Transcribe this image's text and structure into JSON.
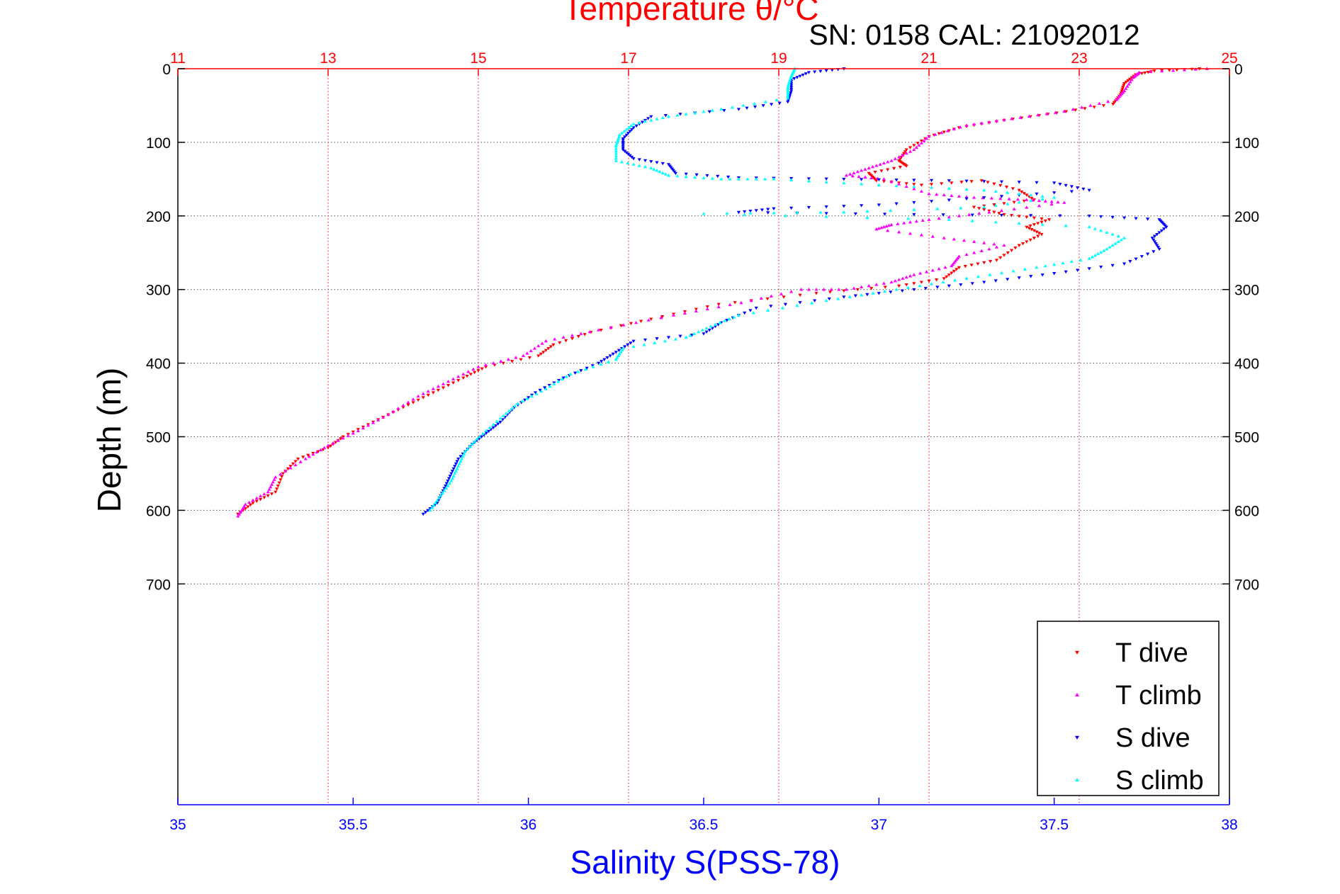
{
  "chart_data": {
    "type": "scatter",
    "title": "Temperature θ/°C",
    "subtitle": "SN: 0158  CAL: 21092012",
    "ylabel": "Depth (m)",
    "xlabel": "Salinity S(PSS-78)",
    "y_axis": {
      "range": [
        0,
        1000
      ],
      "inverted": true,
      "ticks": [
        0,
        100,
        200,
        300,
        400,
        500,
        600,
        700
      ],
      "tick_labels": [
        "0",
        "100",
        "200",
        "300",
        "400",
        "500",
        "600",
        "700"
      ]
    },
    "top_axis": {
      "quantity": "temperature",
      "range": [
        11,
        25
      ],
      "ticks": [
        11,
        13,
        15,
        17,
        19,
        21,
        23,
        25
      ],
      "tick_labels": [
        "11",
        "13",
        "15",
        "17",
        "19",
        "21",
        "23",
        "25"
      ],
      "color": "#ff0000"
    },
    "bottom_axis": {
      "quantity": "salinity",
      "range": [
        35,
        38
      ],
      "ticks": [
        35,
        35.5,
        36,
        36.5,
        37,
        37.5,
        38
      ],
      "tick_labels": [
        "35",
        "35.5",
        "36",
        "36.5",
        "37",
        "37.5",
        "38"
      ],
      "color": "#0000ff"
    },
    "grid": true,
    "legend_position": "bottom-right",
    "series": [
      {
        "name": "T dive",
        "axis": "temperature",
        "color": "#ff0000",
        "marker": "triangle-down",
        "points": [
          [
            24.6,
            0
          ],
          [
            24.0,
            3
          ],
          [
            23.75,
            8
          ],
          [
            23.6,
            20
          ],
          [
            23.55,
            35
          ],
          [
            23.45,
            48
          ],
          [
            22.7,
            60
          ],
          [
            22.0,
            70
          ],
          [
            21.4,
            80
          ],
          [
            21.0,
            92
          ],
          [
            20.7,
            110
          ],
          [
            20.6,
            125
          ],
          [
            20.7,
            132
          ],
          [
            20.2,
            142
          ],
          [
            20.3,
            152
          ],
          [
            20.9,
            158
          ],
          [
            21.7,
            152
          ],
          [
            22.2,
            165
          ],
          [
            22.4,
            178
          ],
          [
            21.6,
            188
          ],
          [
            22.0,
            198
          ],
          [
            22.6,
            205
          ],
          [
            22.3,
            215
          ],
          [
            22.5,
            225
          ],
          [
            22.2,
            240
          ],
          [
            21.9,
            260
          ],
          [
            21.4,
            270
          ],
          [
            21.2,
            285
          ],
          [
            20.6,
            295
          ],
          [
            19.5,
            305
          ],
          [
            18.2,
            320
          ],
          [
            17.3,
            340
          ],
          [
            16.5,
            358
          ],
          [
            16.0,
            375
          ],
          [
            15.8,
            390
          ],
          [
            15.1,
            405
          ],
          [
            14.8,
            420
          ],
          [
            14.4,
            440
          ],
          [
            14.0,
            460
          ],
          [
            13.6,
            480
          ],
          [
            13.2,
            500
          ],
          [
            13.0,
            515
          ],
          [
            12.6,
            530
          ],
          [
            12.4,
            550
          ],
          [
            12.3,
            575
          ],
          [
            12.0,
            590
          ],
          [
            11.8,
            605
          ]
        ]
      },
      {
        "name": "T climb",
        "axis": "temperature",
        "color": "#ff00ff",
        "marker": "triangle-up",
        "points": [
          [
            24.7,
            0
          ],
          [
            23.8,
            5
          ],
          [
            23.72,
            12
          ],
          [
            23.6,
            30
          ],
          [
            23.5,
            42
          ],
          [
            22.8,
            58
          ],
          [
            22.1,
            68
          ],
          [
            21.5,
            77
          ],
          [
            21.0,
            92
          ],
          [
            20.8,
            110
          ],
          [
            20.5,
            125
          ],
          [
            20.2,
            135
          ],
          [
            19.9,
            145
          ],
          [
            20.4,
            150
          ],
          [
            21.0,
            170
          ],
          [
            21.6,
            175
          ],
          [
            22.3,
            178
          ],
          [
            22.8,
            182
          ],
          [
            21.8,
            195
          ],
          [
            21.0,
            205
          ],
          [
            20.5,
            212
          ],
          [
            20.3,
            218
          ],
          [
            21.2,
            230
          ],
          [
            22.0,
            240
          ],
          [
            21.4,
            255
          ],
          [
            21.3,
            268
          ],
          [
            20.8,
            280
          ],
          [
            20.5,
            290
          ],
          [
            19.9,
            300
          ],
          [
            19.3,
            300
          ],
          [
            18.5,
            318
          ],
          [
            17.6,
            335
          ],
          [
            16.6,
            355
          ],
          [
            15.9,
            370
          ],
          [
            15.6,
            390
          ],
          [
            15.0,
            405
          ],
          [
            14.6,
            425
          ],
          [
            14.2,
            445
          ],
          [
            13.8,
            470
          ],
          [
            13.4,
            492
          ],
          [
            13.0,
            512
          ],
          [
            12.7,
            530
          ],
          [
            12.3,
            555
          ],
          [
            12.2,
            575
          ],
          [
            11.9,
            592
          ],
          [
            11.8,
            608
          ]
        ]
      },
      {
        "name": "S dive",
        "axis": "salinity",
        "color": "#0000ff",
        "marker": "triangle-down",
        "points": [
          [
            36.9,
            0
          ],
          [
            36.8,
            5
          ],
          [
            36.75,
            15
          ],
          [
            36.75,
            30
          ],
          [
            36.74,
            45
          ],
          [
            36.6,
            55
          ],
          [
            36.35,
            65
          ],
          [
            36.3,
            80
          ],
          [
            36.27,
            95
          ],
          [
            36.27,
            110
          ],
          [
            36.3,
            122
          ],
          [
            36.4,
            130
          ],
          [
            36.42,
            142
          ],
          [
            36.6,
            148
          ],
          [
            36.9,
            150
          ],
          [
            37.2,
            152
          ],
          [
            37.5,
            155
          ],
          [
            37.6,
            165
          ],
          [
            37.3,
            175
          ],
          [
            37.0,
            185
          ],
          [
            36.7,
            190
          ],
          [
            36.6,
            195
          ],
          [
            37.1,
            198
          ],
          [
            37.6,
            200
          ],
          [
            37.8,
            205
          ],
          [
            37.82,
            215
          ],
          [
            37.78,
            230
          ],
          [
            37.8,
            245
          ],
          [
            37.7,
            265
          ],
          [
            37.5,
            278
          ],
          [
            37.3,
            290
          ],
          [
            37.1,
            300
          ],
          [
            36.9,
            310
          ],
          [
            36.65,
            325
          ],
          [
            36.55,
            345
          ],
          [
            36.5,
            360
          ],
          [
            36.3,
            370
          ],
          [
            36.25,
            385
          ],
          [
            36.2,
            400
          ],
          [
            36.1,
            420
          ],
          [
            36.02,
            440
          ],
          [
            35.96,
            460
          ],
          [
            35.92,
            480
          ],
          [
            35.88,
            495
          ],
          [
            35.84,
            510
          ],
          [
            35.8,
            530
          ],
          [
            35.78,
            550
          ],
          [
            35.76,
            570
          ],
          [
            35.74,
            590
          ],
          [
            35.7,
            605
          ]
        ]
      },
      {
        "name": "S climb",
        "axis": "salinity",
        "color": "#00ffff",
        "marker": "triangle-up",
        "points": [
          [
            36.76,
            0
          ],
          [
            36.75,
            10
          ],
          [
            36.74,
            25
          ],
          [
            36.74,
            40
          ],
          [
            36.55,
            55
          ],
          [
            36.4,
            65
          ],
          [
            36.3,
            75
          ],
          [
            36.26,
            90
          ],
          [
            36.25,
            105
          ],
          [
            36.25,
            125
          ],
          [
            36.35,
            135
          ],
          [
            36.4,
            145
          ],
          [
            36.55,
            150
          ],
          [
            36.7,
            150
          ],
          [
            37.0,
            158
          ],
          [
            37.3,
            165
          ],
          [
            37.5,
            175
          ],
          [
            37.3,
            188
          ],
          [
            36.9,
            195
          ],
          [
            36.5,
            197
          ],
          [
            37.2,
            205
          ],
          [
            37.6,
            215
          ],
          [
            37.7,
            230
          ],
          [
            37.65,
            245
          ],
          [
            37.6,
            258
          ],
          [
            37.45,
            270
          ],
          [
            37.25,
            285
          ],
          [
            37.05,
            300
          ],
          [
            36.85,
            315
          ],
          [
            36.6,
            335
          ],
          [
            36.52,
            350
          ],
          [
            36.45,
            365
          ],
          [
            36.27,
            380
          ],
          [
            36.25,
            395
          ],
          [
            36.12,
            415
          ],
          [
            36.05,
            435
          ],
          [
            35.97,
            455
          ],
          [
            35.92,
            475
          ],
          [
            35.86,
            500
          ],
          [
            35.82,
            520
          ],
          [
            35.8,
            540
          ],
          [
            35.78,
            560
          ],
          [
            35.75,
            580
          ],
          [
            35.72,
            600
          ]
        ]
      }
    ]
  }
}
